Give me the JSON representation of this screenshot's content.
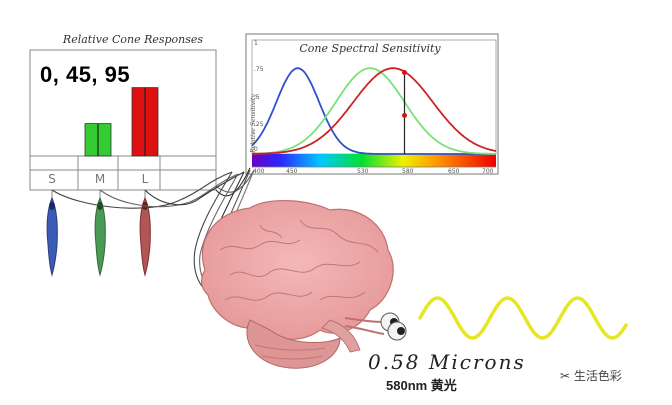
{
  "responses": {
    "title": "Relative Cone Responses",
    "values_text": "0, 45, 95",
    "values": [
      0,
      45,
      95
    ],
    "cones": [
      "S",
      "M",
      "L"
    ],
    "colors": [
      "#3050c8",
      "#33cc33",
      "#dd1111"
    ]
  },
  "spectral": {
    "title": "Cone Spectral Sensitivity",
    "ylabel": "Relative Sensitivity",
    "y_ticks": [
      "1",
      ".75",
      ".5",
      ".25",
      "0"
    ],
    "x_ticks": [
      "400",
      "450",
      "530",
      "580",
      "650",
      "700"
    ]
  },
  "wave": {
    "microns_text": "0.58 Microns",
    "nm_text": "580nm 黄光",
    "color": "#e6e624"
  },
  "watermark": "✂ 生活色彩"
}
